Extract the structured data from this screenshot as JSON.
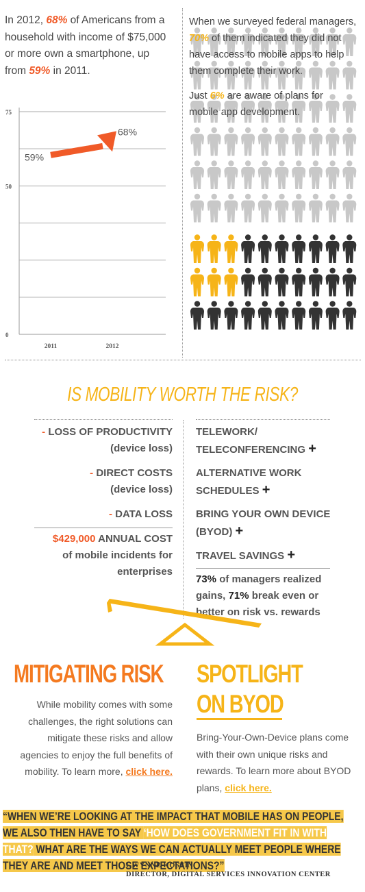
{
  "intro": {
    "pre": "In 2012, ",
    "pct_2012": "68%",
    "mid": " of Americans from a household with income of $75,000 or more own a smartphone, up from ",
    "pct_2011": "59%",
    "post": " in 2011."
  },
  "chart_data": {
    "type": "line",
    "x": [
      "2011",
      "2012"
    ],
    "values": [
      59,
      68
    ],
    "data_labels": [
      "59%",
      "68%"
    ],
    "ytick_labels": [
      "75",
      "50",
      "0"
    ],
    "ylim": [
      0,
      75
    ],
    "grid": true,
    "colors": {
      "arrow": "#f05a28"
    }
  },
  "survey": {
    "pre": "When we surveyed federal managers, ",
    "pct": "70%",
    "post": " of them indicated they did not have access to mobile apps to help them complete their work."
  },
  "plans": {
    "pre": "Just ",
    "pct": "6%",
    "post": " are aware of plans for mobile app development."
  },
  "people": {
    "rows": 9,
    "cols": 10,
    "grey_rows": 6,
    "yellow_per_dark_row": [
      3,
      3,
      0
    ],
    "colors": {
      "grey": "#c8c8c8",
      "yellow": "#f6b418",
      "dark": "#333333"
    }
  },
  "risk": {
    "title": "IS MOBILITY WORTH THE RISK?",
    "costs": [
      {
        "sign": "- ",
        "label": "LOSS OF PRODUCTIVITY",
        "sub": "(device loss)"
      },
      {
        "sign": "- ",
        "label": "DIRECT COSTS",
        "sub": "(device loss)"
      },
      {
        "sign": "- ",
        "label": "DATA LOSS",
        "sub": ""
      }
    ],
    "annual_cost": {
      "amount": "$429,000",
      "label": " ANNUAL COST",
      "sub": "of mobile incidents for enterprises"
    },
    "benefits": [
      {
        "line1": "TELEWORK/",
        "line2": "TELECONFERENCING"
      },
      {
        "line1": "ALTERNATIVE WORK",
        "line2": "SCHEDULES"
      },
      {
        "line1": "BRING YOUR OWN DEVICE",
        "line2": "(BYOD)"
      },
      {
        "line1": "TRAVEL SAVINGS",
        "line2": ""
      }
    ],
    "plus": "+",
    "stat": {
      "pct1": "73%",
      "text1": " of managers realized gains, ",
      "pct2": "71%",
      "text2": " break even or better on risk vs. rewards"
    }
  },
  "mitigating": {
    "heading": "MITIGATING RISK",
    "body": "While mobility comes with some challenges, the right solutions can mitigate these risks and allow agencies to enjoy the full benefits of mobility. To learn more, ",
    "link": "click here."
  },
  "spotlight": {
    "heading1": "SPOTLIGHT",
    "heading2": "ON BYOD",
    "body": "Bring-Your-Own-Device plans come with their own unique risks and rewards. To learn more about BYOD plans, ",
    "link": "click here."
  },
  "quote": {
    "part1": "“WHEN WE’RE LOOKING AT THE IMPACT THAT MOBILE HAS ON PEOPLE, WE ALSO THEN HAVE TO SAY ",
    "part2": "‘HOW DOES GOVERNMENT FIT IN WITH THAT?",
    "part3": " WHAT ARE THE WAYS WE CAN ACTUALLY MEET PEOPLE WHERE THEY ARE AND MEET THOSE EXPECTATIONS?”",
    "name": "GWYNNE KOSTIN,",
    "title": "DIRECTOR, DIGITAL SERVICES INNOVATION CENTER"
  }
}
